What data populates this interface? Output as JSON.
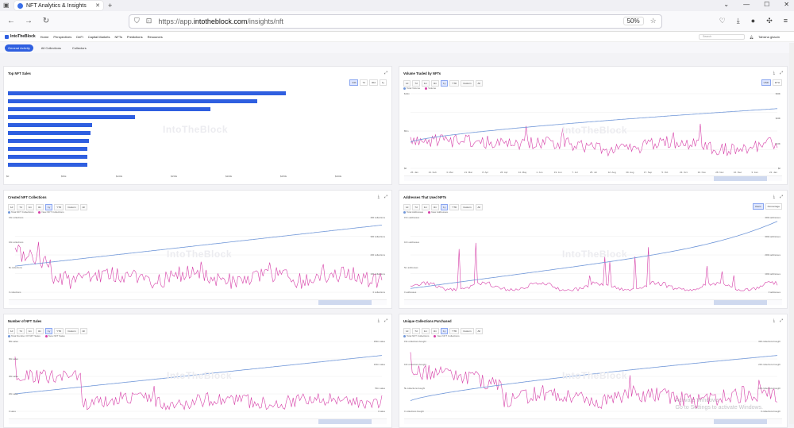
{
  "browser": {
    "tab_title": "NFT Analytics & Insights",
    "url_prefix": "https://app.",
    "url_host": "intotheblock.com",
    "url_path": "/insights/nft",
    "zoom": "50%"
  },
  "site": {
    "logo": "IntoTheBlock",
    "nav": [
      "Home",
      "Perspectives",
      "DeFi",
      "Capital Markets",
      "NFTs",
      "Predictions",
      "Resources"
    ],
    "search_placeholder": "Search",
    "user": "Tahsina gbaoin"
  },
  "subtabs": [
    "General Activity",
    "All Collections",
    "Collectors"
  ],
  "watermark": "IntoTheBlock",
  "windows_watermark": [
    "Activate Windows",
    "Go to Settings to activate Windows."
  ],
  "cards": {
    "top_sales": {
      "title": "Top NFT Sales",
      "filters": [
        "24h",
        "7d",
        "30d",
        "1y"
      ],
      "xticks": [
        "$0",
        "$50k",
        "$100k",
        "$150k",
        "$200k",
        "$250k",
        "$300k"
      ]
    },
    "volume": {
      "title": "Volume Traded by NFTs",
      "filters": [
        "1d",
        "7d",
        "1m",
        "3m",
        "1y",
        "YTD",
        "Custom",
        "All"
      ],
      "legend": [
        "Total Volume",
        "Volume"
      ],
      "toggle": [
        "USD",
        "ETH"
      ],
      "yticks_right": [
        "$30b",
        "$20b",
        "$10b",
        "$0"
      ],
      "yticks_left": [
        "$10m",
        "$5m",
        "$0"
      ],
      "xticks": [
        "26. Jan",
        "13. Feb",
        "3. Mar",
        "21. Mar",
        "8. Apr",
        "26. Apr",
        "14. May",
        "1. Jun",
        "19. Jun",
        "7. Jul",
        "25. Jul",
        "12. Aug",
        "30. Aug",
        "17. Sep",
        "5. Oct",
        "23. Oct",
        "10. Nov",
        "28. Nov",
        "16. Dec",
        "3. Jan",
        "21. Jan"
      ]
    },
    "created": {
      "title": "Created NFT Collections",
      "filters": [
        "1d",
        "7d",
        "1m",
        "3m",
        "1y",
        "YTD",
        "Custom",
        "All"
      ],
      "legend": [
        "Total NFT Collections",
        "New NFT Collections"
      ],
      "yticks_left": [
        "15k collections",
        "10k collections",
        "5k collections",
        "0 collections"
      ],
      "yticks_right": [
        "400 collections",
        "300 collections",
        "200 collections",
        "100 collections",
        "0 collections"
      ]
    },
    "addresses": {
      "title": "Addresses That Used NFTs",
      "filters": [
        "1d",
        "7d",
        "1m",
        "3m",
        "1y",
        "YTD",
        "Custom",
        "All"
      ],
      "legend": [
        "Total Addresses",
        "New Addresses"
      ],
      "toggle": [
        "Users",
        "Percentage"
      ],
      "yticks_left": [
        "15m addresses",
        "10m addresses",
        "5m addresses",
        "0 addresses"
      ],
      "yticks_right": [
        "400k addresses",
        "300k addresses",
        "200k addresses",
        "100k addresses",
        "0 addresses"
      ]
    },
    "sales": {
      "title": "Number of NFT Sales",
      "filters": [
        "1d",
        "7d",
        "1m",
        "3m",
        "1y",
        "YTD",
        "Custom",
        "All"
      ],
      "legend": [
        "Total Number Of NFT Sales",
        "New NFT Sales"
      ],
      "yticks_left": [
        "80k sales",
        "60k sales",
        "40k sales",
        "20k sales",
        "0 sales"
      ],
      "yticks_right": [
        "150m sales",
        "100m sales",
        "50m sales",
        "0 sales"
      ]
    },
    "unique": {
      "title": "Unique Collections Purchased",
      "filters": [
        "1d",
        "7d",
        "1m",
        "3m",
        "1y",
        "YTD",
        "Custom",
        "All"
      ],
      "legend": [
        "Total NFT Collections",
        "New NFT Collections"
      ],
      "yticks_left": [
        "15k collections bought",
        "10k collections bought",
        "5k collections bought",
        "0 collections bought"
      ],
      "yticks_right": [
        "300 collections bought",
        "200 collections bought",
        "100 collections bought",
        "0 collections bought"
      ]
    }
  },
  "colors": {
    "blue": "#2f5fe0",
    "line_blue": "#6f96d8",
    "pink": "#d63fa8"
  }
}
